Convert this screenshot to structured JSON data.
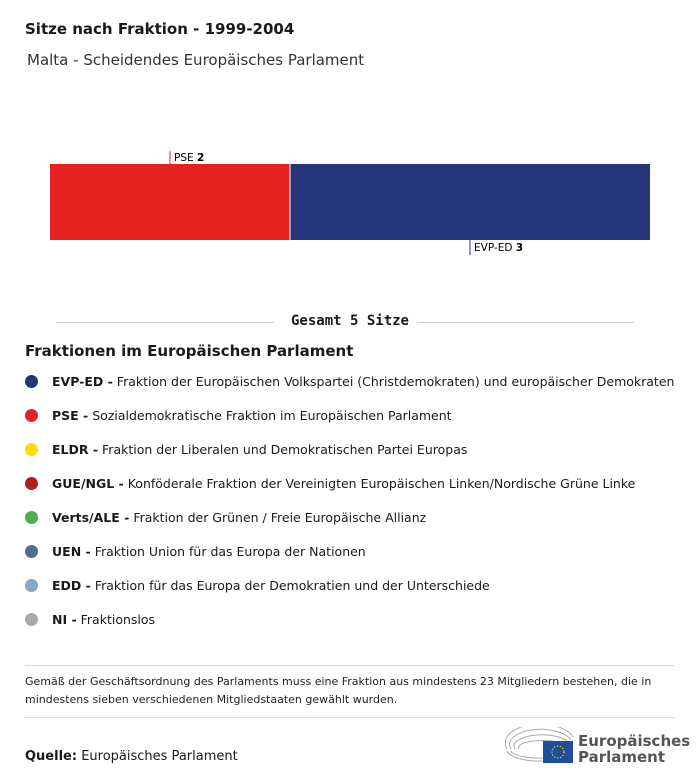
{
  "title": "Sitze nach Fraktion - 1999-2004",
  "subtitle": "Malta - Scheidendes Europäisches Parlament",
  "chart_data": {
    "type": "bar",
    "orientation": "stacked-horizontal",
    "categories": [
      "PSE",
      "EVP-ED"
    ],
    "values": [
      2,
      3
    ],
    "colors": [
      "#e42321",
      "#27367b"
    ],
    "total_label": "Gesamt 5 Sitze"
  },
  "legend_title": "Fraktionen im Europäischen Parlament",
  "legend": [
    {
      "abbr": "EVP-ED -",
      "name": "Fraktion der Europäischen Volkspartei (Christdemokraten) und europäischer Demokraten",
      "color": "#27367b"
    },
    {
      "abbr": "PSE -",
      "name": "Sozialdemokratische Fraktion im Europäischen Parlament",
      "color": "#e42321"
    },
    {
      "abbr": "ELDR -",
      "name": "Fraktion der Liberalen und Demokratischen Partei Europas",
      "color": "#ffdd00"
    },
    {
      "abbr": "GUE/NGL -",
      "name": "Konföderale Fraktion der Vereinigten Europäischen Linken/Nordische Grüne Linke",
      "color": "#b71c1c"
    },
    {
      "abbr": "Verts/ALE -",
      "name": "Fraktion der Grünen / Freie Europäische Allianz",
      "color": "#4caf50"
    },
    {
      "abbr": "UEN -",
      "name": "Fraktion Union für das Europa der Nationen",
      "color": "#546a94"
    },
    {
      "abbr": "EDD -",
      "name": "Fraktion für das Europa der Demokratien und der Unterschiede",
      "color": "#86a7bd"
    },
    {
      "abbr": "NI -",
      "name": "Fraktionslos",
      "color": "#aaaaaa"
    }
  ],
  "note": "Gemäß der Geschäftsordnung des Parlaments muss eine Fraktion aus mindestens 23 Mitgliedern bestehen, die in mindestens sieben verschiedenen Mitgliedstaaten gewählt wurden.",
  "source_label": "Quelle:",
  "source": "Europäisches Parlament",
  "logo_text": [
    "Europäisches",
    "Parlament"
  ]
}
